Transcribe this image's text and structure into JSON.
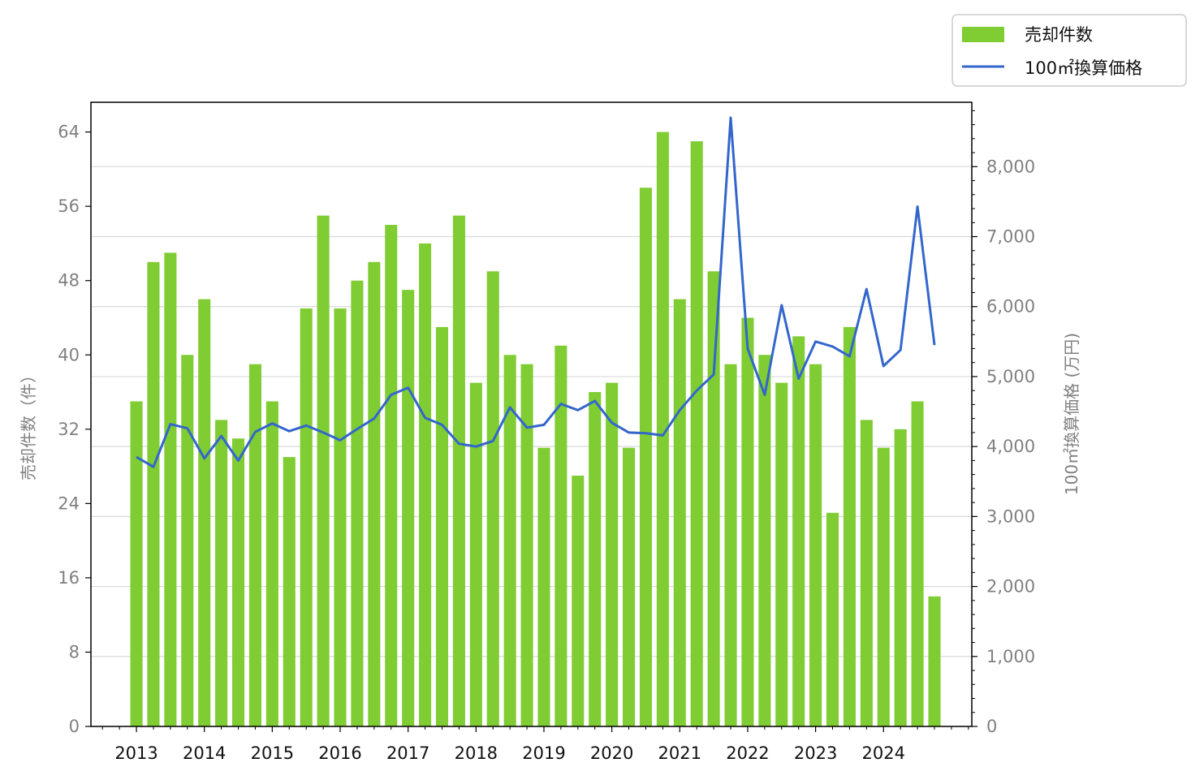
{
  "chart_data": {
    "type": "bar",
    "x": [
      2013.0,
      2013.25,
      2013.5,
      2013.75,
      2014.0,
      2014.25,
      2014.5,
      2014.75,
      2015.0,
      2015.25,
      2015.5,
      2015.75,
      2016.0,
      2016.25,
      2016.5,
      2016.75,
      2017.0,
      2017.25,
      2017.5,
      2017.75,
      2018.0,
      2018.25,
      2018.5,
      2018.75,
      2019.0,
      2019.25,
      2019.5,
      2019.75,
      2020.0,
      2020.25,
      2020.5,
      2020.75,
      2021.0,
      2021.25,
      2021.5,
      2021.75,
      2022.0,
      2022.25,
      2022.5,
      2022.75,
      2023.0,
      2023.25,
      2023.5,
      2023.75,
      2024.0,
      2024.25,
      2024.5,
      2024.75
    ],
    "series": [
      {
        "name": "売却件数",
        "type": "bar",
        "axis": "left",
        "color": "#7fcc33",
        "values": [
          35,
          50,
          51,
          40,
          46,
          33,
          31,
          39,
          35,
          29,
          45,
          55,
          45,
          48,
          50,
          54,
          47,
          52,
          43,
          55,
          37,
          49,
          40,
          39,
          30,
          41,
          27,
          36,
          37,
          30,
          58,
          64,
          46,
          63,
          49,
          39,
          44,
          40,
          37,
          42,
          39,
          23,
          43,
          33,
          30,
          32,
          35,
          14
        ]
      },
      {
        "name": "100㎡換算価格",
        "type": "line",
        "axis": "right",
        "color": "#3366cc",
        "values": [
          3850,
          3710,
          4320,
          4260,
          3830,
          4150,
          3800,
          4210,
          4330,
          4220,
          4300,
          4200,
          4090,
          4250,
          4400,
          4740,
          4840,
          4410,
          4310,
          4040,
          4000,
          4080,
          4560,
          4270,
          4310,
          4610,
          4520,
          4650,
          4340,
          4200,
          4190,
          4160,
          4520,
          4800,
          5030,
          8700,
          5400,
          4740,
          6020,
          4970,
          5500,
          5430,
          5290,
          6250,
          5150,
          5380,
          7430,
          5450
        ]
      }
    ],
    "x_ticks": [
      "2013",
      "2014",
      "2015",
      "2016",
      "2017",
      "2018",
      "2019",
      "2020",
      "2021",
      "2022",
      "2023",
      "2024"
    ],
    "y_left": {
      "label": "売却件数（件）",
      "ticks": [
        "0",
        "8",
        "16",
        "24",
        "32",
        "40",
        "48",
        "56",
        "64"
      ],
      "lim": [
        0,
        67.2
      ]
    },
    "y_right": {
      "label": "100㎡換算価格 (万円)",
      "ticks": [
        "0",
        "1,000",
        "2,000",
        "3,000",
        "4,000",
        "5,000",
        "6,000",
        "7,000",
        "8,000"
      ],
      "lim": [
        0,
        8920
      ]
    },
    "xlim": [
      2012.33,
      2025.3
    ],
    "grid": "horizontal (right axis)",
    "legend_position": "top-right, outside"
  }
}
